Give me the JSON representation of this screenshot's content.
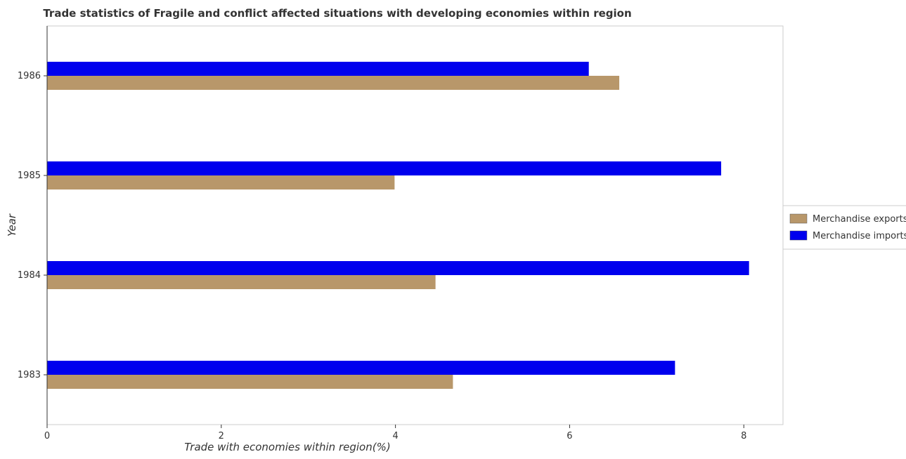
{
  "chart_data": {
    "type": "bar",
    "orientation": "horizontal",
    "title": "Trade statistics of Fragile and conflict affected situations with developing economies within region",
    "xlabel": "Trade with economies within region(%)",
    "ylabel": "Year",
    "categories": [
      "1983",
      "1984",
      "1985",
      "1986"
    ],
    "series": [
      {
        "name": "Merchandise exports",
        "color": "#b8976a",
        "values": [
          4.66,
          4.46,
          3.99,
          6.57
        ]
      },
      {
        "name": "Merchandise imports",
        "color": "#0000ee",
        "values": [
          7.21,
          8.06,
          7.74,
          6.22
        ]
      }
    ],
    "xlim": [
      0,
      8.45
    ],
    "xticks": [
      0,
      2,
      4,
      6,
      8
    ],
    "xtick_labels": [
      "0",
      "2",
      "4",
      "6",
      "8"
    ],
    "grid": false,
    "legend_position": "right"
  }
}
